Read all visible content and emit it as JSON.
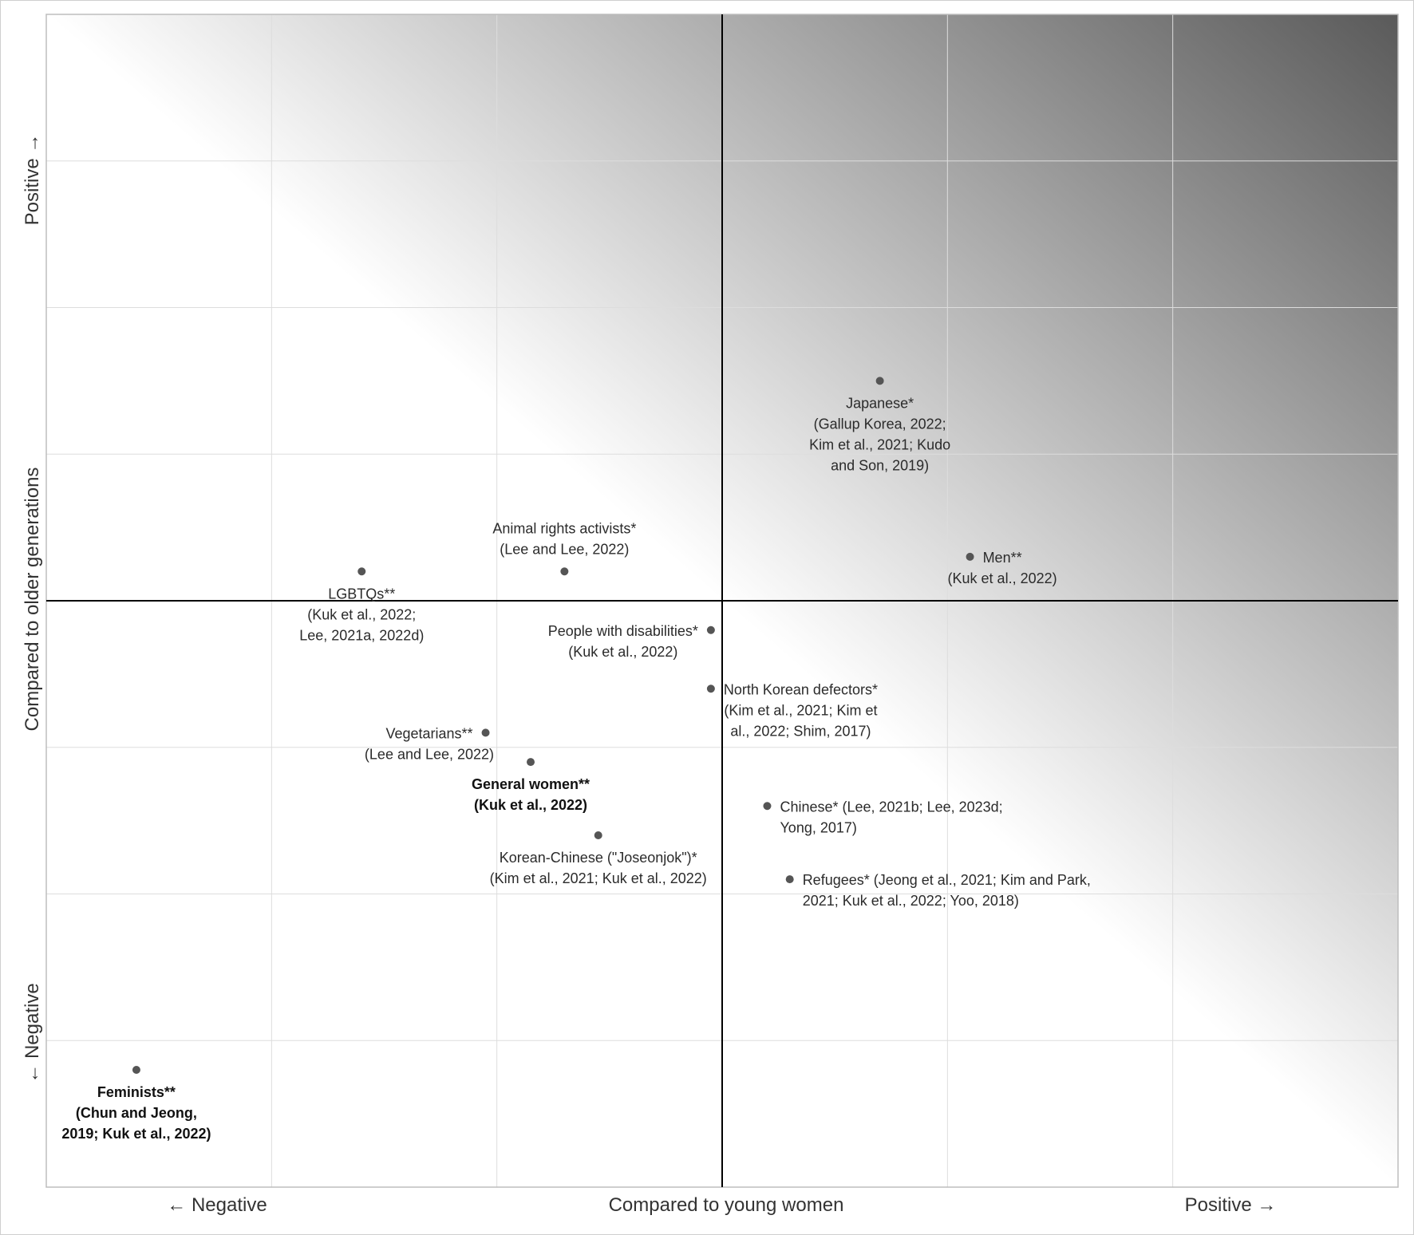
{
  "chart_data": {
    "type": "scatter",
    "x_axis": {
      "title": "Compared to young women",
      "negative_label": "← Negative",
      "positive_label": "Positive →",
      "range": [
        -3,
        3
      ],
      "gridlines": [
        -2,
        -1,
        0,
        1,
        2
      ]
    },
    "y_axis": {
      "title": "Compared to older generations",
      "negative_label": "← Negative",
      "positive_label": "Positive →",
      "range": [
        -4,
        4
      ],
      "gridlines": [
        -3,
        -2,
        -1,
        0,
        1,
        2,
        3
      ]
    },
    "grid": true,
    "background": "diagonal gradient from white (bottom-left) to dark gray (top-right)",
    "colors": {
      "point": "#555555",
      "axis": "#000000",
      "grid": "#dddddd",
      "gradient_dark": "#5a5a5a"
    },
    "points": [
      {
        "id": "japanese",
        "x": 0.7,
        "y": 1.5,
        "label_pos": "below",
        "bold": false,
        "label": [
          "Japanese*",
          "(Gallup Korea, 2022;",
          "Kim et al., 2021; Kudo",
          "and Son, 2019)"
        ]
      },
      {
        "id": "men",
        "x": 1.1,
        "y": 0.3,
        "label_pos": "right",
        "bold": false,
        "label": [
          "Men**",
          "(Kuk et al., 2022)"
        ]
      },
      {
        "id": "animal-rights",
        "x": -0.7,
        "y": 0.2,
        "label_pos": "above",
        "bold": false,
        "label": [
          "Animal rights activists*",
          "(Lee and Lee, 2022)"
        ]
      },
      {
        "id": "lgbtqs",
        "x": -1.6,
        "y": 0.2,
        "label_pos": "below",
        "bold": false,
        "label": [
          "LGBTQs**",
          "(Kuk et al., 2022;",
          "Lee, 2021a, 2022d)"
        ]
      },
      {
        "id": "disabilities",
        "x": -0.05,
        "y": -0.2,
        "label_pos": "left",
        "bold": false,
        "label": [
          "People with disabilities*",
          "(Kuk et al., 2022)"
        ]
      },
      {
        "id": "nk-defectors",
        "x": -0.05,
        "y": -0.6,
        "label_pos": "right",
        "bold": false,
        "label": [
          "North Korean defectors*",
          "(Kim et al., 2021; Kim et",
          "al., 2022; Shim, 2017)"
        ]
      },
      {
        "id": "vegetarians",
        "x": -1.05,
        "y": -0.9,
        "label_pos": "left",
        "bold": false,
        "label": [
          "Vegetarians**",
          "(Lee and Lee, 2022)"
        ]
      },
      {
        "id": "general-women",
        "x": -0.85,
        "y": -1.1,
        "label_pos": "below",
        "bold": true,
        "label": [
          "General women**",
          "(Kuk et al., 2022)"
        ]
      },
      {
        "id": "chinese",
        "x": 0.2,
        "y": -1.4,
        "label_pos": "right",
        "bold": false,
        "label": [
          "Chinese* (Lee, 2021b; Lee, 2023d;",
          "Yong, 2017)"
        ]
      },
      {
        "id": "korean-chinese",
        "x": -0.55,
        "y": -1.6,
        "label_pos": "below",
        "bold": false,
        "label": [
          "Korean-Chinese (\"Joseonjok\")*",
          "(Kim et al., 2021; Kuk et al., 2022)"
        ]
      },
      {
        "id": "refugees",
        "x": 0.3,
        "y": -1.9,
        "label_pos": "right",
        "bold": false,
        "label": [
          "Refugees* (Jeong et al., 2021; Kim and Park,",
          "2021; Kuk et al., 2022; Yoo, 2018)"
        ]
      },
      {
        "id": "feminists",
        "x": -2.6,
        "y": -3.2,
        "label_pos": "below",
        "bold": true,
        "label": [
          "Feminists**",
          "(Chun and Jeong,",
          "2019; Kuk et al., 2022)"
        ]
      }
    ]
  }
}
